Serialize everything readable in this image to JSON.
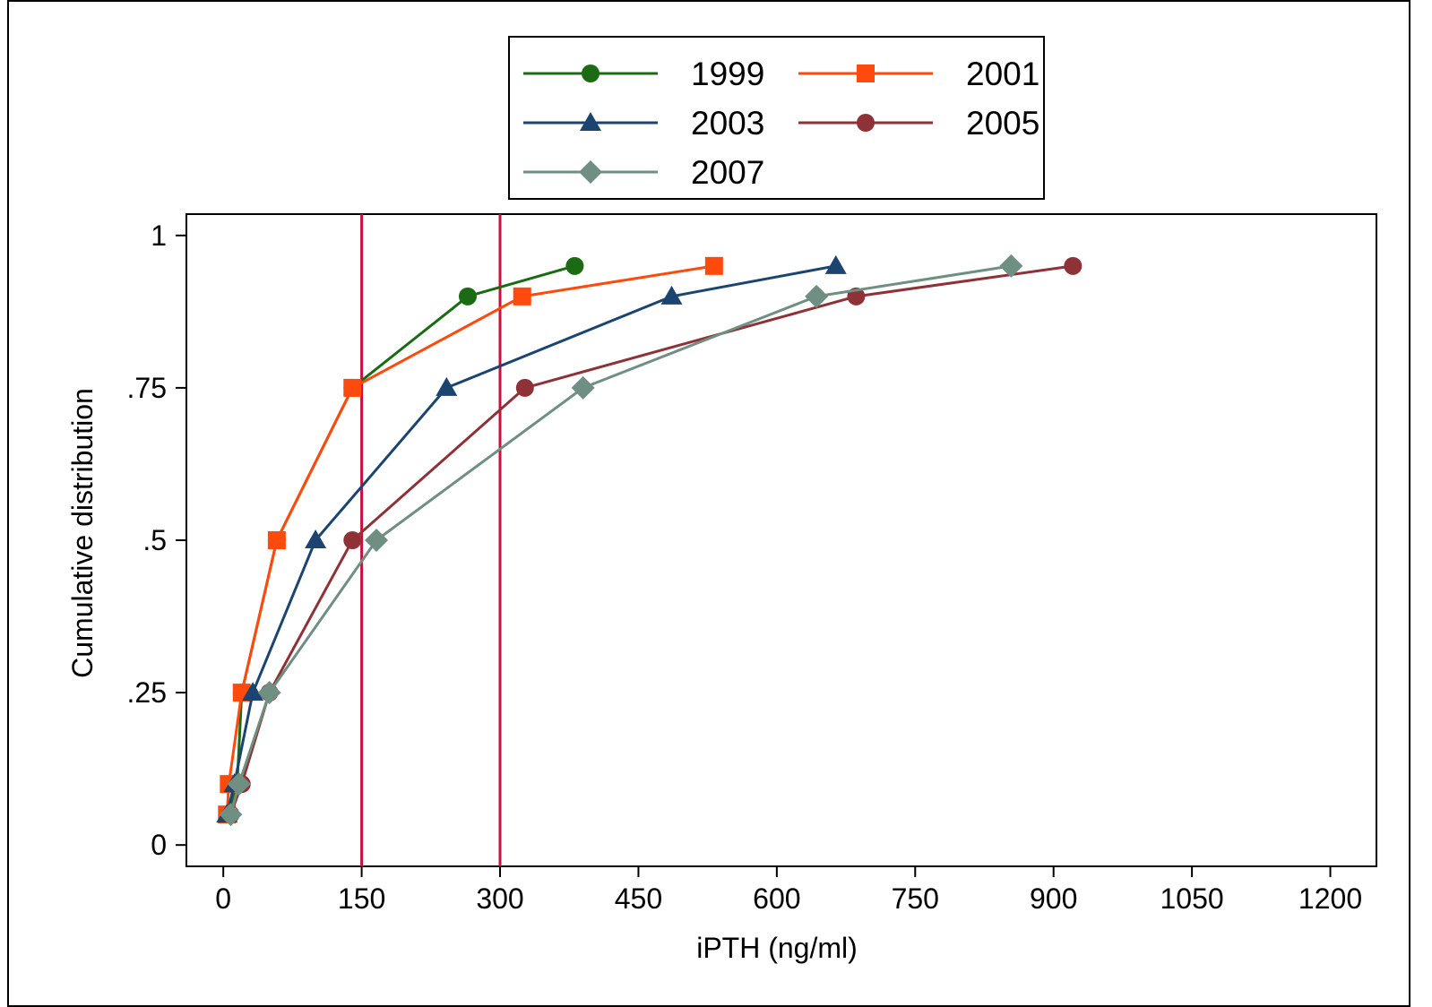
{
  "chart_data": {
    "type": "line",
    "title": "",
    "xlabel": "iPTH (ng/ml)",
    "ylabel": "Cumulative distribution",
    "xlim": [
      -40,
      1250
    ],
    "ylim": [
      -0.035,
      1.035
    ],
    "xticks": [
      0,
      150,
      300,
      450,
      600,
      750,
      900,
      1050,
      1200
    ],
    "xtick_labels": [
      "0",
      "150",
      "300",
      "450",
      "600",
      "750",
      "900",
      "1050",
      "1200"
    ],
    "yticks": [
      0,
      0.25,
      0.5,
      0.75,
      1
    ],
    "ytick_labels": [
      "0",
      ".25",
      ".5",
      ".75",
      "1"
    ],
    "grid": false,
    "legend_position": "top-center",
    "reference_lines_x": [
      150,
      300
    ],
    "reference_line_color": "#c8103e",
    "series": [
      {
        "name": "1999",
        "color": "#1a6b14",
        "marker": "circle",
        "x": [
          6,
          15,
          20,
          58,
          140,
          265,
          381
        ],
        "y": [
          0.05,
          0.1,
          0.25,
          0.5,
          0.75,
          0.9,
          0.95
        ]
      },
      {
        "name": "2001",
        "color": "#ff4a0d",
        "marker": "square",
        "x": [
          4,
          6,
          20,
          58,
          140,
          324,
          532
        ],
        "y": [
          0.05,
          0.1,
          0.25,
          0.5,
          0.75,
          0.9,
          0.95
        ]
      },
      {
        "name": "2003",
        "color": "#1b4570",
        "marker": "triangle",
        "x": [
          4,
          12,
          32,
          100,
          242,
          486,
          664
        ],
        "y": [
          0.05,
          0.1,
          0.25,
          0.5,
          0.75,
          0.9,
          0.95
        ]
      },
      {
        "name": "2005",
        "color": "#8e3237",
        "marker": "circle",
        "x": [
          8,
          20,
          50,
          140,
          327,
          686,
          921
        ],
        "y": [
          0.05,
          0.1,
          0.25,
          0.5,
          0.75,
          0.9,
          0.95
        ]
      },
      {
        "name": "2007",
        "color": "#6f8f82",
        "marker": "diamond",
        "x": [
          8,
          17,
          50,
          166,
          390,
          643,
          854
        ],
        "y": [
          0.05,
          0.1,
          0.25,
          0.5,
          0.75,
          0.9,
          0.95
        ]
      }
    ]
  },
  "legend": {
    "items": [
      {
        "label": "1999"
      },
      {
        "label": "2001"
      },
      {
        "label": "2003"
      },
      {
        "label": "2005"
      },
      {
        "label": "2007"
      }
    ]
  }
}
